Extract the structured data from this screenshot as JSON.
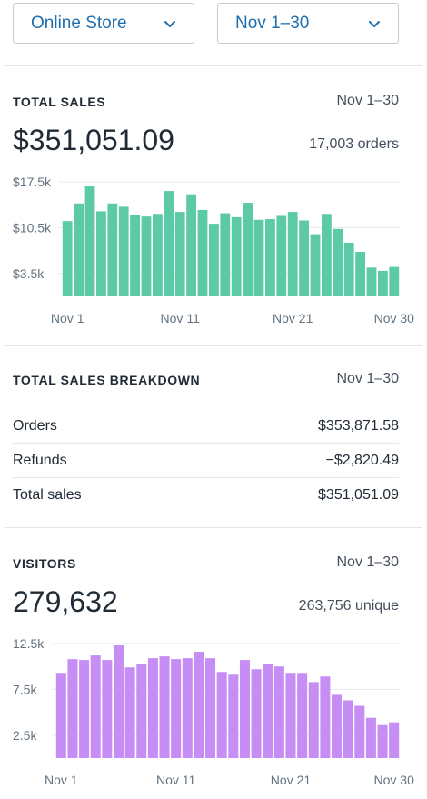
{
  "filters": {
    "store": {
      "label": "Online Store",
      "icon": "chevron-down-icon"
    },
    "date": {
      "label": "Nov 1–30",
      "icon": "chevron-down-icon"
    }
  },
  "total_sales": {
    "title": "TOTAL SALES",
    "range": "Nov 1–30",
    "amount": "$351,051.09",
    "orders": "17,003 orders"
  },
  "breakdown": {
    "title": "TOTAL SALES BREAKDOWN",
    "range": "Nov 1–30",
    "rows": [
      {
        "label": "Orders",
        "value": "$353,871.58"
      },
      {
        "label": "Refunds",
        "value": "−$2,820.49"
      },
      {
        "label": "Total sales",
        "value": "$351,051.09"
      }
    ]
  },
  "visitors": {
    "title": "VISITORS",
    "range": "Nov 1–30",
    "count": "279,632",
    "unique": "263,756 unique"
  },
  "colors": {
    "sales_bar": "#5ccaa6",
    "visitors_bar": "#c68ef5",
    "link": "#1e6fb0"
  },
  "chart_data": [
    {
      "type": "bar",
      "yticks": [
        3500,
        10500,
        17500
      ],
      "ytick_labels": [
        "$3.5k",
        "$10.5k",
        "$17.5k"
      ],
      "xtick_labels": [
        "Nov 1",
        "Nov 11",
        "Nov 21",
        "Nov 30"
      ],
      "xtick_days": [
        1,
        11,
        21,
        30
      ],
      "ylim": [
        0,
        17500
      ],
      "grid": true,
      "categories": [
        "1",
        "2",
        "3",
        "4",
        "5",
        "6",
        "7",
        "8",
        "9",
        "10",
        "11",
        "12",
        "13",
        "14",
        "15",
        "16",
        "17",
        "18",
        "19",
        "20",
        "21",
        "22",
        "23",
        "24",
        "25",
        "26",
        "27",
        "28",
        "29",
        "30"
      ],
      "values": [
        11500,
        14200,
        16800,
        13000,
        14200,
        13700,
        12400,
        12200,
        12600,
        16100,
        12900,
        15600,
        13200,
        11100,
        12700,
        12100,
        14300,
        11700,
        11800,
        12300,
        12900,
        11600,
        9500,
        12600,
        10300,
        8200,
        6800,
        4400,
        3900,
        4500
      ]
    },
    {
      "type": "bar",
      "yticks": [
        2500,
        7500,
        12500
      ],
      "ytick_labels": [
        "2.5k",
        "7.5k",
        "12.5k"
      ],
      "xtick_labels": [
        "Nov 1",
        "Nov 11",
        "Nov 21",
        "Nov 30"
      ],
      "xtick_days": [
        1,
        11,
        21,
        30
      ],
      "ylim": [
        0,
        12500
      ],
      "grid": true,
      "categories": [
        "1",
        "2",
        "3",
        "4",
        "5",
        "6",
        "7",
        "8",
        "9",
        "10",
        "11",
        "12",
        "13",
        "14",
        "15",
        "16",
        "17",
        "18",
        "19",
        "20",
        "21",
        "22",
        "23",
        "24",
        "25",
        "26",
        "27",
        "28",
        "29",
        "30"
      ],
      "values": [
        9300,
        10800,
        10700,
        11200,
        10700,
        12300,
        9900,
        10300,
        10900,
        11100,
        10800,
        10900,
        11600,
        10900,
        9400,
        9100,
        10700,
        9700,
        10300,
        10000,
        9300,
        9300,
        8300,
        8900,
        6900,
        6300,
        5700,
        4400,
        3600,
        3900
      ]
    }
  ]
}
